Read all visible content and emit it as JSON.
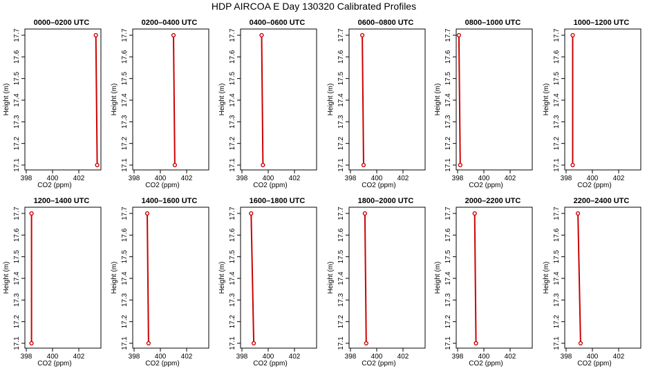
{
  "figure": {
    "title": "HDP AIRCOA E  Day 130320  Calibrated Profiles"
  },
  "style": {
    "line_color": "#cc0000",
    "marker_color": "#cc0000",
    "frame_color": "#000000"
  },
  "chart_data": [
    {
      "type": "line",
      "title": "0000–0200 UTC",
      "xlabel": "CO2 (ppm)",
      "ylabel": "Height (m)",
      "xlim": [
        398,
        404
      ],
      "ylim": [
        17.1,
        17.7
      ],
      "x_ticks": [
        398,
        400,
        402
      ],
      "y_ticks": [
        17.1,
        17.2,
        17.3,
        17.4,
        17.5,
        17.6,
        17.7
      ],
      "grid": false,
      "series": [
        {
          "x": [
            403.3,
            403.4
          ],
          "y": [
            17.7,
            17.1
          ]
        }
      ]
    },
    {
      "type": "line",
      "title": "0200–0400 UTC",
      "xlabel": "CO2 (ppm)",
      "ylabel": "Height (m)",
      "xlim": [
        398,
        404
      ],
      "ylim": [
        17.1,
        17.7
      ],
      "x_ticks": [
        398,
        400,
        402
      ],
      "y_ticks": [
        17.1,
        17.2,
        17.3,
        17.4,
        17.5,
        17.6,
        17.7
      ],
      "grid": false,
      "series": [
        {
          "x": [
            401.0,
            401.1
          ],
          "y": [
            17.7,
            17.1
          ]
        }
      ]
    },
    {
      "type": "line",
      "title": "0400–0600 UTC",
      "xlabel": "CO2 (ppm)",
      "ylabel": "Height (m)",
      "xlim": [
        398,
        404
      ],
      "ylim": [
        17.1,
        17.7
      ],
      "x_ticks": [
        398,
        400,
        402
      ],
      "y_ticks": [
        17.1,
        17.2,
        17.3,
        17.4,
        17.5,
        17.6,
        17.7
      ],
      "grid": false,
      "series": [
        {
          "x": [
            399.5,
            399.6
          ],
          "y": [
            17.7,
            17.1
          ]
        }
      ]
    },
    {
      "type": "line",
      "title": "0600–0800 UTC",
      "xlabel": "CO2 (ppm)",
      "ylabel": "Height (m)",
      "xlim": [
        398,
        404
      ],
      "ylim": [
        17.1,
        17.7
      ],
      "x_ticks": [
        398,
        400,
        402
      ],
      "y_ticks": [
        17.1,
        17.2,
        17.3,
        17.4,
        17.5,
        17.6,
        17.7
      ],
      "grid": false,
      "series": [
        {
          "x": [
            398.9,
            399.0
          ],
          "y": [
            17.7,
            17.1
          ]
        }
      ]
    },
    {
      "type": "line",
      "title": "0800–1000 UTC",
      "xlabel": "CO2 (ppm)",
      "ylabel": "Height (m)",
      "xlim": [
        398,
        404
      ],
      "ylim": [
        17.1,
        17.7
      ],
      "x_ticks": [
        398,
        400,
        402
      ],
      "y_ticks": [
        17.1,
        17.2,
        17.3,
        17.4,
        17.5,
        17.6,
        17.7
      ],
      "grid": false,
      "series": [
        {
          "x": [
            398.1,
            398.2
          ],
          "y": [
            17.7,
            17.1
          ]
        }
      ]
    },
    {
      "type": "line",
      "title": "1000–1200 UTC",
      "xlabel": "CO2 (ppm)",
      "ylabel": "Height (m)",
      "xlim": [
        398,
        404
      ],
      "ylim": [
        17.1,
        17.7
      ],
      "x_ticks": [
        398,
        400,
        402
      ],
      "y_ticks": [
        17.1,
        17.2,
        17.3,
        17.4,
        17.5,
        17.6,
        17.7
      ],
      "grid": false,
      "series": [
        {
          "x": [
            398.5,
            398.5
          ],
          "y": [
            17.7,
            17.1
          ]
        }
      ]
    },
    {
      "type": "line",
      "title": "1200–1400 UTC",
      "xlabel": "CO2 (ppm)",
      "ylabel": "Height (m)",
      "xlim": [
        398,
        404
      ],
      "ylim": [
        17.1,
        17.7
      ],
      "x_ticks": [
        398,
        400,
        402
      ],
      "y_ticks": [
        17.1,
        17.2,
        17.3,
        17.4,
        17.5,
        17.6,
        17.7
      ],
      "grid": false,
      "series": [
        {
          "x": [
            398.4,
            398.4
          ],
          "y": [
            17.7,
            17.1
          ]
        }
      ]
    },
    {
      "type": "line",
      "title": "1400–1600 UTC",
      "xlabel": "CO2 (ppm)",
      "ylabel": "Height (m)",
      "xlim": [
        398,
        404
      ],
      "ylim": [
        17.1,
        17.7
      ],
      "x_ticks": [
        398,
        400,
        402
      ],
      "y_ticks": [
        17.1,
        17.2,
        17.3,
        17.4,
        17.5,
        17.6,
        17.7
      ],
      "grid": false,
      "series": [
        {
          "x": [
            399.0,
            399.1
          ],
          "y": [
            17.7,
            17.1
          ]
        }
      ]
    },
    {
      "type": "line",
      "title": "1600–1800 UTC",
      "xlabel": "CO2 (ppm)",
      "ylabel": "Height (m)",
      "xlim": [
        398,
        404
      ],
      "ylim": [
        17.1,
        17.7
      ],
      "x_ticks": [
        398,
        400,
        402
      ],
      "y_ticks": [
        17.1,
        17.2,
        17.3,
        17.4,
        17.5,
        17.6,
        17.7
      ],
      "grid": false,
      "series": [
        {
          "x": [
            398.7,
            398.9
          ],
          "y": [
            17.7,
            17.1
          ]
        }
      ]
    },
    {
      "type": "line",
      "title": "1800–2000 UTC",
      "xlabel": "CO2 (ppm)",
      "ylabel": "Height (m)",
      "xlim": [
        398,
        404
      ],
      "ylim": [
        17.1,
        17.7
      ],
      "x_ticks": [
        398,
        400,
        402
      ],
      "y_ticks": [
        17.1,
        17.2,
        17.3,
        17.4,
        17.5,
        17.6,
        17.7
      ],
      "grid": false,
      "series": [
        {
          "x": [
            399.1,
            399.2
          ],
          "y": [
            17.7,
            17.1
          ]
        }
      ]
    },
    {
      "type": "line",
      "title": "2000–2200 UTC",
      "xlabel": "CO2 (ppm)",
      "ylabel": "Height (m)",
      "xlim": [
        398,
        404
      ],
      "ylim": [
        17.1,
        17.7
      ],
      "x_ticks": [
        398,
        400,
        402
      ],
      "y_ticks": [
        17.1,
        17.2,
        17.3,
        17.4,
        17.5,
        17.6,
        17.7
      ],
      "grid": false,
      "series": [
        {
          "x": [
            399.3,
            399.4
          ],
          "y": [
            17.7,
            17.1
          ]
        }
      ]
    },
    {
      "type": "line",
      "title": "2200–2400 UTC",
      "xlabel": "CO2 (ppm)",
      "ylabel": "Height (m)",
      "xlim": [
        398,
        404
      ],
      "ylim": [
        17.1,
        17.7
      ],
      "x_ticks": [
        398,
        400,
        402
      ],
      "y_ticks": [
        17.1,
        17.2,
        17.3,
        17.4,
        17.5,
        17.6,
        17.7
      ],
      "grid": false,
      "series": [
        {
          "x": [
            398.9,
            399.1
          ],
          "y": [
            17.7,
            17.1
          ]
        }
      ]
    }
  ]
}
